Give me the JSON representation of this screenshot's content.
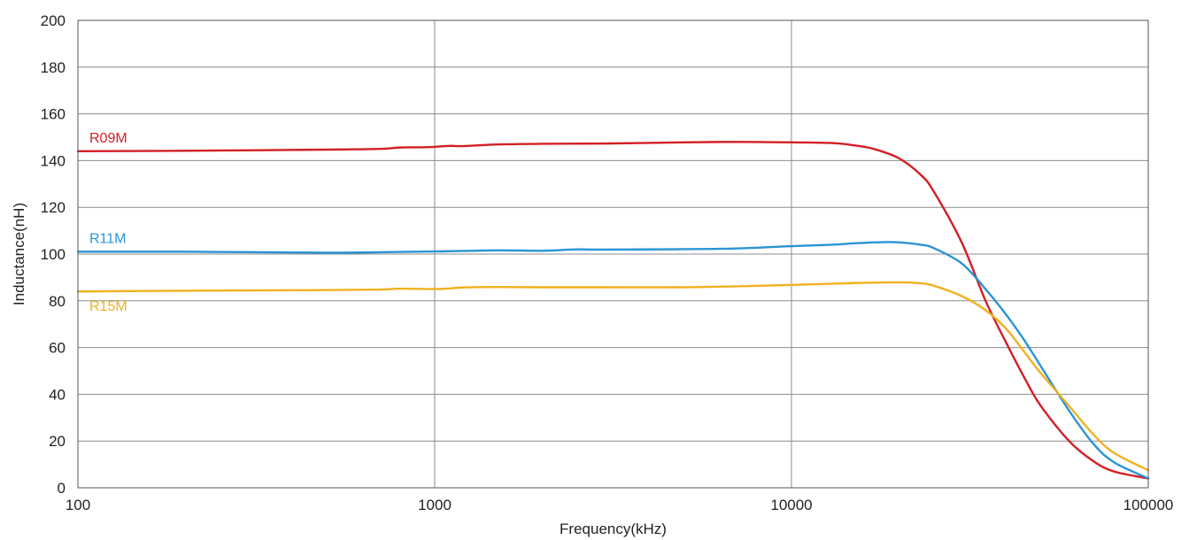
{
  "chart_data": {
    "type": "line",
    "title": "",
    "xlabel": "Frequency(kHz)",
    "ylabel": "Inductance(nH)",
    "x_scale": "log",
    "xlim": [
      100,
      100000
    ],
    "ylim": [
      0,
      200
    ],
    "x_ticks": [
      "100",
      "1000",
      "10000",
      "100000"
    ],
    "x_tick_values": [
      100,
      1000,
      10000,
      100000
    ],
    "y_ticks": [
      "0",
      "20",
      "40",
      "60",
      "80",
      "100",
      "120",
      "140",
      "160",
      "180",
      "200"
    ],
    "y_tick_values": [
      0,
      20,
      40,
      60,
      80,
      100,
      120,
      140,
      160,
      180,
      200
    ],
    "grid": true,
    "legend": "inline labels near left end of each line",
    "series": [
      {
        "name": "R09M",
        "color": "#d21f26",
        "x": [
          100,
          200,
          500,
          700,
          800,
          950,
          1100,
          1200,
          1500,
          2000,
          3000,
          5000,
          7000,
          10000,
          13000,
          15000,
          17000,
          20000,
          23000,
          25000,
          30000,
          35000,
          40000,
          45000,
          50000,
          60000,
          70000,
          80000,
          100000
        ],
        "y": [
          144,
          144.2,
          144.7,
          145,
          145.6,
          145.7,
          146.3,
          146.2,
          146.9,
          147.2,
          147.3,
          147.8,
          148,
          147.8,
          147.5,
          146.5,
          145,
          141,
          134,
          127,
          105,
          80,
          62,
          47,
          35,
          20,
          11.5,
          7,
          4
        ]
      },
      {
        "name": "R11M",
        "color": "#2a93d4",
        "x": [
          100,
          200,
          500,
          700,
          1000,
          1500,
          2000,
          2500,
          3000,
          5000,
          7000,
          10000,
          13000,
          15000,
          18000,
          20000,
          23000,
          25000,
          30000,
          35000,
          40000,
          45000,
          50000,
          60000,
          70000,
          80000,
          100000
        ],
        "y": [
          101,
          101,
          100.6,
          100.8,
          101.1,
          101.6,
          101.4,
          102,
          101.9,
          102.1,
          102.4,
          103.4,
          104,
          104.6,
          105.1,
          105,
          104,
          102.6,
          96,
          85,
          74,
          63,
          52,
          33,
          19,
          11,
          4
        ]
      },
      {
        "name": "R15M",
        "color": "#f0b11f",
        "x": [
          100,
          200,
          500,
          700,
          800,
          1000,
          1100,
          1200,
          1500,
          2000,
          3000,
          5000,
          7000,
          10000,
          15000,
          20000,
          23000,
          25000,
          30000,
          35000,
          40000,
          45000,
          50000,
          60000,
          70000,
          80000,
          100000
        ],
        "y": [
          84,
          84.3,
          84.6,
          84.8,
          85.2,
          85,
          85.3,
          85.7,
          85.9,
          85.8,
          85.8,
          85.8,
          86.2,
          86.8,
          87.6,
          87.9,
          87.5,
          86.5,
          82,
          76,
          68,
          58,
          49,
          35,
          23,
          15,
          7.5
        ]
      }
    ]
  }
}
